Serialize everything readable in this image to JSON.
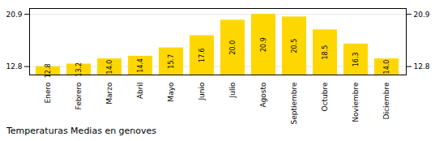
{
  "chart_data": {
    "type": "bar",
    "title": "Temperaturas Medias en genoves",
    "categories": [
      "Enero",
      "Febrero",
      "Marzo",
      "Abril",
      "Mayo",
      "Junio",
      "Julio",
      "Agosto",
      "Septiembre",
      "Octubre",
      "Noviembre",
      "Diciembre"
    ],
    "values": [
      12.8,
      13.2,
      14.0,
      14.4,
      15.7,
      17.6,
      20.0,
      20.9,
      20.5,
      18.5,
      16.3,
      14.0
    ],
    "value_labels": [
      "12.8",
      "13.2",
      "14.0",
      "14.4",
      "15.7",
      "17.6",
      "20.0",
      "20.9",
      "20.5",
      "18.5",
      "16.3",
      "14.0"
    ],
    "color": "#FFD700",
    "ylim": [
      11.5,
      21.8
    ],
    "yticks": [
      12.8,
      20.9
    ],
    "grid": true,
    "data_labels": true
  }
}
